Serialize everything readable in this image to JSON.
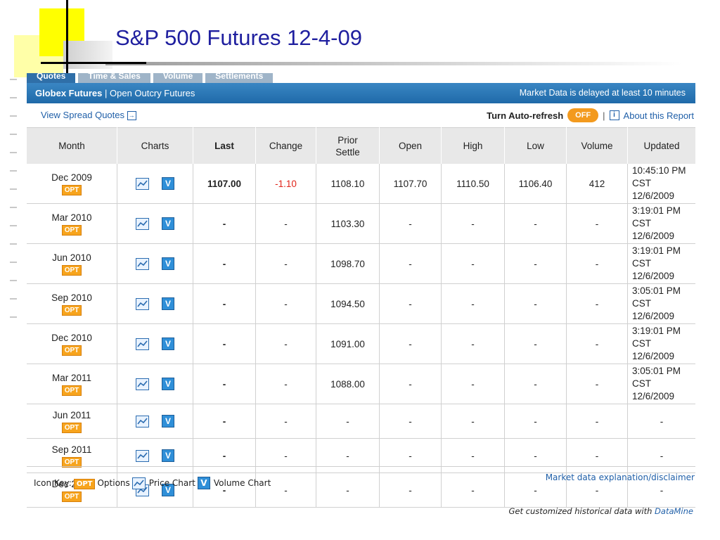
{
  "slide": {
    "title": "S&P 500 Futures 12-4-09"
  },
  "tabs": [
    "Quotes",
    "Time & Sales",
    "Volume",
    "Settlements"
  ],
  "header_bar": {
    "globex": "Globex Futures",
    "divider": "|",
    "open_outcry": "Open Outcry Futures",
    "delay_notice": "Market Data is delayed at least 10 minutes"
  },
  "subbar": {
    "spread_link": "View Spread Quotes",
    "spread_icon": "→",
    "auto_refresh_label": "Turn Auto-refresh",
    "auto_refresh_button": "OFF",
    "sep": "|",
    "info_icon": "i",
    "about_link": "About this Report"
  },
  "columns": {
    "month": "Month",
    "charts": "Charts",
    "last": "Last",
    "change": "Change",
    "prior_settle": "Prior Settle",
    "open": "Open",
    "high": "High",
    "low": "Low",
    "volume": "Volume",
    "updated": "Updated"
  },
  "opt_label": "OPT",
  "vc_label": "V",
  "rows": [
    {
      "month": "Dec 2009",
      "last": "1107.00",
      "change": "-1.10",
      "prior": "1108.10",
      "open": "1107.70",
      "high": "1110.50",
      "low": "1106.40",
      "volume": "412",
      "time": "10:45:10 PM CST",
      "date": "12/6/2009"
    },
    {
      "month": "Mar 2010",
      "last": "-",
      "change": "-",
      "prior": "1103.30",
      "open": "-",
      "high": "-",
      "low": "-",
      "volume": "-",
      "time": "3:19:01 PM CST",
      "date": "12/6/2009"
    },
    {
      "month": "Jun 2010",
      "last": "-",
      "change": "-",
      "prior": "1098.70",
      "open": "-",
      "high": "-",
      "low": "-",
      "volume": "-",
      "time": "3:19:01 PM CST",
      "date": "12/6/2009"
    },
    {
      "month": "Sep 2010",
      "last": "-",
      "change": "-",
      "prior": "1094.50",
      "open": "-",
      "high": "-",
      "low": "-",
      "volume": "-",
      "time": "3:05:01 PM CST",
      "date": "12/6/2009"
    },
    {
      "month": "Dec 2010",
      "last": "-",
      "change": "-",
      "prior": "1091.00",
      "open": "-",
      "high": "-",
      "low": "-",
      "volume": "-",
      "time": "3:19:01 PM CST",
      "date": "12/6/2009"
    },
    {
      "month": "Mar 2011",
      "last": "-",
      "change": "-",
      "prior": "1088.00",
      "open": "-",
      "high": "-",
      "low": "-",
      "volume": "-",
      "time": "3:05:01 PM CST",
      "date": "12/6/2009"
    },
    {
      "month": "Jun 2011",
      "last": "-",
      "change": "-",
      "prior": "-",
      "open": "-",
      "high": "-",
      "low": "-",
      "volume": "-",
      "time": "-",
      "date": ""
    },
    {
      "month": "Sep 2011",
      "last": "-",
      "change": "-",
      "prior": "-",
      "open": "-",
      "high": "-",
      "low": "-",
      "volume": "-",
      "time": "-",
      "date": ""
    },
    {
      "month": "Dec 2011",
      "last": "-",
      "change": "-",
      "prior": "-",
      "open": "-",
      "high": "-",
      "low": "-",
      "volume": "-",
      "time": "-",
      "date": ""
    }
  ],
  "footer": {
    "icon_key": "Icon Key:",
    "options": "Options",
    "price_chart": "Price Chart",
    "volume_chart": "Volume Chart",
    "disclaimer": "Market data explanation/disclaimer",
    "custom_text": "Get customized historical data with",
    "datamine": "DataMine"
  },
  "colors": {
    "accent_blue": "#1f6aa9",
    "negative": "#e1251b",
    "opt_orange": "#f7a41d",
    "title": "#1f1f9f"
  }
}
